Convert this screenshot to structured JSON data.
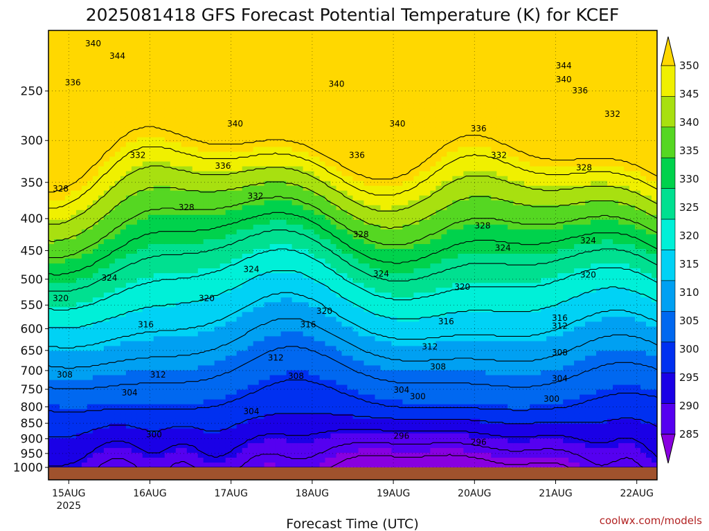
{
  "chart_data": {
    "type": "heatmap",
    "title": "2025081418 GFS Forecast Potential Temperature (K) for KCEF",
    "xlabel": "Forecast Time (UTC)",
    "ylabel": "",
    "x_ticks": [
      {
        "label": "15AUG",
        "sub": "2025",
        "day": 0
      },
      {
        "label": "16AUG",
        "day": 1
      },
      {
        "label": "17AUG",
        "day": 2
      },
      {
        "label": "18AUG",
        "day": 3
      },
      {
        "label": "19AUG",
        "day": 4
      },
      {
        "label": "20AUG",
        "day": 5
      },
      {
        "label": "21AUG",
        "day": 6
      },
      {
        "label": "22AUG",
        "day": 7
      }
    ],
    "x_range_days": [
      -0.25,
      7.25
    ],
    "y_ticks": [
      250,
      300,
      350,
      400,
      450,
      500,
      550,
      600,
      650,
      700,
      750,
      800,
      850,
      900,
      950,
      1000
    ],
    "y_range_hpa": [
      200,
      1000
    ],
    "y_scale": "log",
    "grid": "dotted",
    "colorbar": {
      "levels": [
        285,
        290,
        295,
        300,
        305,
        310,
        315,
        320,
        325,
        330,
        335,
        340,
        345,
        350
      ],
      "labels": [
        "350",
        "345",
        "340",
        "335",
        "330",
        "325",
        "320",
        "315",
        "310",
        "305",
        "300",
        "295",
        "290",
        "285"
      ],
      "colors": [
        "#8800e0",
        "#5500f0",
        "#1a00e6",
        "#0030f0",
        "#0068f0",
        "#00a0f2",
        "#00d2f5",
        "#00f0d8",
        "#00e090",
        "#00d24c",
        "#55d722",
        "#a8e010",
        "#f0f000",
        "#ffd800"
      ],
      "units": "K"
    },
    "contour_labels": [
      {
        "text": "340",
        "day": 0.3,
        "p": 212
      },
      {
        "text": "344",
        "day": 0.6,
        "p": 222
      },
      {
        "text": "336",
        "day": 0.05,
        "p": 245
      },
      {
        "text": "340",
        "day": 2.05,
        "p": 285
      },
      {
        "text": "340",
        "day": 3.3,
        "p": 246
      },
      {
        "text": "340",
        "day": 4.05,
        "p": 285
      },
      {
        "text": "344",
        "day": 6.1,
        "p": 230
      },
      {
        "text": "340",
        "day": 6.1,
        "p": 242
      },
      {
        "text": "336",
        "day": 6.3,
        "p": 252
      },
      {
        "text": "332",
        "day": 6.7,
        "p": 275
      },
      {
        "text": "332",
        "day": 0.85,
        "p": 320
      },
      {
        "text": "336",
        "day": 1.9,
        "p": 333
      },
      {
        "text": "336",
        "day": 3.55,
        "p": 320
      },
      {
        "text": "336",
        "day": 5.05,
        "p": 290
      },
      {
        "text": "332",
        "day": 5.3,
        "p": 320
      },
      {
        "text": "328",
        "day": 6.35,
        "p": 335
      },
      {
        "text": "328",
        "day": -0.1,
        "p": 362
      },
      {
        "text": "328",
        "day": 1.45,
        "p": 388
      },
      {
        "text": "332",
        "day": 2.3,
        "p": 372
      },
      {
        "text": "328",
        "day": 3.6,
        "p": 428
      },
      {
        "text": "328",
        "day": 5.1,
        "p": 415
      },
      {
        "text": "324",
        "day": 5.35,
        "p": 450
      },
      {
        "text": "324",
        "day": 6.4,
        "p": 438
      },
      {
        "text": "324",
        "day": 0.5,
        "p": 503
      },
      {
        "text": "324",
        "day": 2.25,
        "p": 487
      },
      {
        "text": "324",
        "day": 3.85,
        "p": 495
      },
      {
        "text": "320",
        "day": 4.85,
        "p": 520
      },
      {
        "text": "320",
        "day": 6.4,
        "p": 497
      },
      {
        "text": "320",
        "day": -0.1,
        "p": 542
      },
      {
        "text": "320",
        "day": 1.7,
        "p": 542
      },
      {
        "text": "320",
        "day": 3.15,
        "p": 568
      },
      {
        "text": "316",
        "day": 6.05,
        "p": 583
      },
      {
        "text": "316",
        "day": 0.95,
        "p": 597
      },
      {
        "text": "316",
        "day": 2.95,
        "p": 597
      },
      {
        "text": "316",
        "day": 4.65,
        "p": 590
      },
      {
        "text": "312",
        "day": 6.05,
        "p": 600
      },
      {
        "text": "312",
        "day": 2.55,
        "p": 675
      },
      {
        "text": "312",
        "day": 4.45,
        "p": 648
      },
      {
        "text": "308",
        "day": 6.05,
        "p": 662
      },
      {
        "text": "308",
        "day": -0.05,
        "p": 718
      },
      {
        "text": "312",
        "day": 1.1,
        "p": 718
      },
      {
        "text": "308",
        "day": 2.8,
        "p": 722
      },
      {
        "text": "308",
        "day": 4.55,
        "p": 697
      },
      {
        "text": "304",
        "day": 6.05,
        "p": 728
      },
      {
        "text": "304",
        "day": 0.75,
        "p": 767
      },
      {
        "text": "304",
        "day": 2.25,
        "p": 822
      },
      {
        "text": "304",
        "day": 4.1,
        "p": 760
      },
      {
        "text": "300",
        "day": 4.3,
        "p": 778
      },
      {
        "text": "300",
        "day": 5.95,
        "p": 785
      },
      {
        "text": "300",
        "day": 1.05,
        "p": 895
      },
      {
        "text": "296",
        "day": 4.1,
        "p": 900
      },
      {
        "text": "296",
        "day": 5.05,
        "p": 920
      }
    ]
  },
  "watermark": "coolwx.com/models"
}
